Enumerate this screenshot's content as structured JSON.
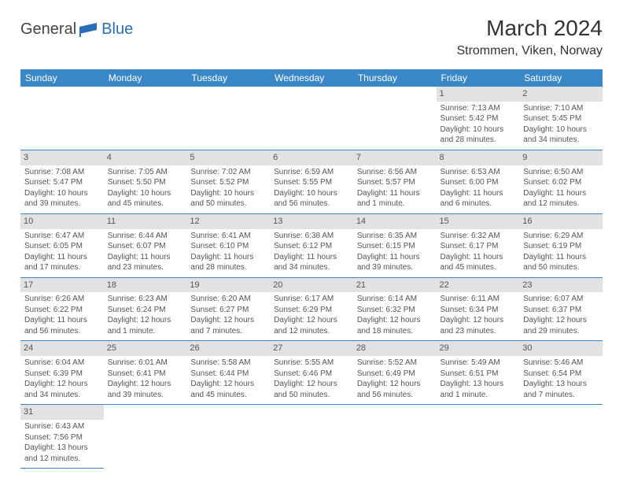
{
  "logo": {
    "text1": "General",
    "text2": "Blue"
  },
  "title": "March 2024",
  "location": "Strommen, Viken, Norway",
  "colors": {
    "header_bg": "#3a87c8",
    "header_text": "#ffffff",
    "daynum_bg": "#e2e2e2",
    "border": "#3a87c8",
    "logo_blue": "#2a6fb5"
  },
  "weekday_headers": [
    "Sunday",
    "Monday",
    "Tuesday",
    "Wednesday",
    "Thursday",
    "Friday",
    "Saturday"
  ],
  "weeks": [
    [
      null,
      null,
      null,
      null,
      null,
      {
        "d": "1",
        "sr": "Sunrise: 7:13 AM",
        "ss": "Sunset: 5:42 PM",
        "dl1": "Daylight: 10 hours",
        "dl2": "and 28 minutes."
      },
      {
        "d": "2",
        "sr": "Sunrise: 7:10 AM",
        "ss": "Sunset: 5:45 PM",
        "dl1": "Daylight: 10 hours",
        "dl2": "and 34 minutes."
      }
    ],
    [
      {
        "d": "3",
        "sr": "Sunrise: 7:08 AM",
        "ss": "Sunset: 5:47 PM",
        "dl1": "Daylight: 10 hours",
        "dl2": "and 39 minutes."
      },
      {
        "d": "4",
        "sr": "Sunrise: 7:05 AM",
        "ss": "Sunset: 5:50 PM",
        "dl1": "Daylight: 10 hours",
        "dl2": "and 45 minutes."
      },
      {
        "d": "5",
        "sr": "Sunrise: 7:02 AM",
        "ss": "Sunset: 5:52 PM",
        "dl1": "Daylight: 10 hours",
        "dl2": "and 50 minutes."
      },
      {
        "d": "6",
        "sr": "Sunrise: 6:59 AM",
        "ss": "Sunset: 5:55 PM",
        "dl1": "Daylight: 10 hours",
        "dl2": "and 56 minutes."
      },
      {
        "d": "7",
        "sr": "Sunrise: 6:56 AM",
        "ss": "Sunset: 5:57 PM",
        "dl1": "Daylight: 11 hours",
        "dl2": "and 1 minute."
      },
      {
        "d": "8",
        "sr": "Sunrise: 6:53 AM",
        "ss": "Sunset: 6:00 PM",
        "dl1": "Daylight: 11 hours",
        "dl2": "and 6 minutes."
      },
      {
        "d": "9",
        "sr": "Sunrise: 6:50 AM",
        "ss": "Sunset: 6:02 PM",
        "dl1": "Daylight: 11 hours",
        "dl2": "and 12 minutes."
      }
    ],
    [
      {
        "d": "10",
        "sr": "Sunrise: 6:47 AM",
        "ss": "Sunset: 6:05 PM",
        "dl1": "Daylight: 11 hours",
        "dl2": "and 17 minutes."
      },
      {
        "d": "11",
        "sr": "Sunrise: 6:44 AM",
        "ss": "Sunset: 6:07 PM",
        "dl1": "Daylight: 11 hours",
        "dl2": "and 23 minutes."
      },
      {
        "d": "12",
        "sr": "Sunrise: 6:41 AM",
        "ss": "Sunset: 6:10 PM",
        "dl1": "Daylight: 11 hours",
        "dl2": "and 28 minutes."
      },
      {
        "d": "13",
        "sr": "Sunrise: 6:38 AM",
        "ss": "Sunset: 6:12 PM",
        "dl1": "Daylight: 11 hours",
        "dl2": "and 34 minutes."
      },
      {
        "d": "14",
        "sr": "Sunrise: 6:35 AM",
        "ss": "Sunset: 6:15 PM",
        "dl1": "Daylight: 11 hours",
        "dl2": "and 39 minutes."
      },
      {
        "d": "15",
        "sr": "Sunrise: 6:32 AM",
        "ss": "Sunset: 6:17 PM",
        "dl1": "Daylight: 11 hours",
        "dl2": "and 45 minutes."
      },
      {
        "d": "16",
        "sr": "Sunrise: 6:29 AM",
        "ss": "Sunset: 6:19 PM",
        "dl1": "Daylight: 11 hours",
        "dl2": "and 50 minutes."
      }
    ],
    [
      {
        "d": "17",
        "sr": "Sunrise: 6:26 AM",
        "ss": "Sunset: 6:22 PM",
        "dl1": "Daylight: 11 hours",
        "dl2": "and 56 minutes."
      },
      {
        "d": "18",
        "sr": "Sunrise: 6:23 AM",
        "ss": "Sunset: 6:24 PM",
        "dl1": "Daylight: 12 hours",
        "dl2": "and 1 minute."
      },
      {
        "d": "19",
        "sr": "Sunrise: 6:20 AM",
        "ss": "Sunset: 6:27 PM",
        "dl1": "Daylight: 12 hours",
        "dl2": "and 7 minutes."
      },
      {
        "d": "20",
        "sr": "Sunrise: 6:17 AM",
        "ss": "Sunset: 6:29 PM",
        "dl1": "Daylight: 12 hours",
        "dl2": "and 12 minutes."
      },
      {
        "d": "21",
        "sr": "Sunrise: 6:14 AM",
        "ss": "Sunset: 6:32 PM",
        "dl1": "Daylight: 12 hours",
        "dl2": "and 18 minutes."
      },
      {
        "d": "22",
        "sr": "Sunrise: 6:11 AM",
        "ss": "Sunset: 6:34 PM",
        "dl1": "Daylight: 12 hours",
        "dl2": "and 23 minutes."
      },
      {
        "d": "23",
        "sr": "Sunrise: 6:07 AM",
        "ss": "Sunset: 6:37 PM",
        "dl1": "Daylight: 12 hours",
        "dl2": "and 29 minutes."
      }
    ],
    [
      {
        "d": "24",
        "sr": "Sunrise: 6:04 AM",
        "ss": "Sunset: 6:39 PM",
        "dl1": "Daylight: 12 hours",
        "dl2": "and 34 minutes."
      },
      {
        "d": "25",
        "sr": "Sunrise: 6:01 AM",
        "ss": "Sunset: 6:41 PM",
        "dl1": "Daylight: 12 hours",
        "dl2": "and 39 minutes."
      },
      {
        "d": "26",
        "sr": "Sunrise: 5:58 AM",
        "ss": "Sunset: 6:44 PM",
        "dl1": "Daylight: 12 hours",
        "dl2": "and 45 minutes."
      },
      {
        "d": "27",
        "sr": "Sunrise: 5:55 AM",
        "ss": "Sunset: 6:46 PM",
        "dl1": "Daylight: 12 hours",
        "dl2": "and 50 minutes."
      },
      {
        "d": "28",
        "sr": "Sunrise: 5:52 AM",
        "ss": "Sunset: 6:49 PM",
        "dl1": "Daylight: 12 hours",
        "dl2": "and 56 minutes."
      },
      {
        "d": "29",
        "sr": "Sunrise: 5:49 AM",
        "ss": "Sunset: 6:51 PM",
        "dl1": "Daylight: 13 hours",
        "dl2": "and 1 minute."
      },
      {
        "d": "30",
        "sr": "Sunrise: 5:46 AM",
        "ss": "Sunset: 6:54 PM",
        "dl1": "Daylight: 13 hours",
        "dl2": "and 7 minutes."
      }
    ],
    [
      {
        "d": "31",
        "sr": "Sunrise: 6:43 AM",
        "ss": "Sunset: 7:56 PM",
        "dl1": "Daylight: 13 hours",
        "dl2": "and 12 minutes."
      },
      null,
      null,
      null,
      null,
      null,
      null
    ]
  ]
}
